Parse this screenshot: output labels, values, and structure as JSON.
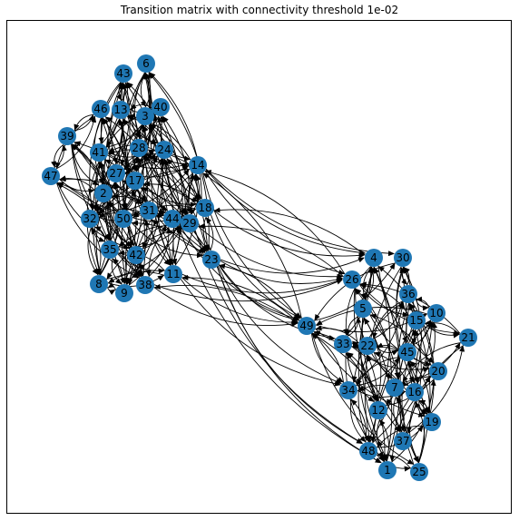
{
  "title": "Transition matrix with connectivity threshold 1e-02",
  "node_color": "#1f77b4",
  "edge_color": "#000000",
  "clusters": {
    "cluster_a": [
      "6",
      "43",
      "46",
      "13",
      "3",
      "40",
      "39",
      "41",
      "28",
      "24",
      "47",
      "27",
      "17",
      "14",
      "2",
      "32",
      "50",
      "31",
      "44",
      "29",
      "18",
      "35",
      "42",
      "11",
      "23",
      "8",
      "38",
      "9"
    ],
    "cluster_b": [
      "4",
      "30",
      "26",
      "36",
      "5",
      "10",
      "15",
      "49",
      "33",
      "22",
      "21",
      "45",
      "20",
      "34",
      "7",
      "16",
      "12",
      "19",
      "37",
      "48",
      "1",
      "25"
    ]
  },
  "bridge_edges": [
    [
      "14",
      "4"
    ],
    [
      "14",
      "26"
    ],
    [
      "14",
      "49"
    ],
    [
      "14",
      "30"
    ],
    [
      "29",
      "26"
    ],
    [
      "18",
      "49"
    ],
    [
      "18",
      "4"
    ],
    [
      "44",
      "49"
    ],
    [
      "23",
      "26"
    ],
    [
      "23",
      "4"
    ],
    [
      "23",
      "49"
    ],
    [
      "23",
      "33"
    ],
    [
      "23",
      "34"
    ],
    [
      "23",
      "48"
    ],
    [
      "11",
      "49"
    ],
    [
      "11",
      "26"
    ],
    [
      "38",
      "49"
    ],
    [
      "38",
      "26"
    ],
    [
      "29",
      "48"
    ],
    [
      "44",
      "1"
    ],
    [
      "23",
      "1"
    ],
    [
      "11",
      "34"
    ],
    [
      "49",
      "14"
    ],
    [
      "49",
      "23"
    ],
    [
      "26",
      "14"
    ],
    [
      "4",
      "18"
    ],
    [
      "26",
      "29"
    ],
    [
      "49",
      "11"
    ],
    [
      "49",
      "38"
    ]
  ]
}
